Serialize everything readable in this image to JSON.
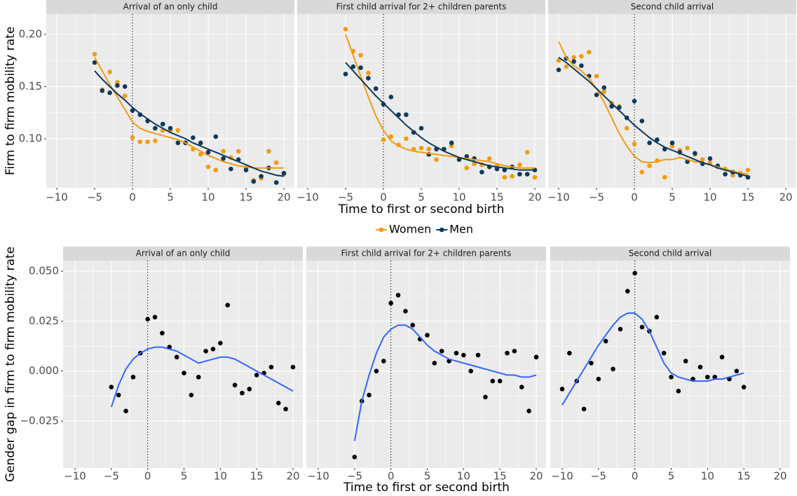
{
  "chart_data": [
    {
      "type": "scatter",
      "y_label": "Firm to firm mobility rate",
      "x_label": "Time to first or second birth",
      "ylim": [
        0.053,
        0.2195
      ],
      "yticks": [
        {
          "value": 0.1,
          "label": "0.10"
        },
        {
          "value": 0.15,
          "label": "0.15"
        },
        {
          "value": 0.2,
          "label": "0.20"
        }
      ],
      "xlim": [
        -11.39,
        21.39
      ],
      "xticks": [
        {
          "value": -10,
          "label": "−10"
        },
        {
          "value": -5,
          "label": "−5"
        },
        0,
        5,
        10,
        15,
        20
      ],
      "vline": 0,
      "grid": true,
      "legend": "bottom",
      "series": [
        {
          "name": "Women",
          "color": "#f39b12"
        },
        {
          "name": "Men",
          "color": "#0e3a5c"
        }
      ],
      "facets": [
        {
          "title": "Arrival of an only child",
          "x": [
            -5,
            -4,
            -3,
            -2,
            -1,
            0,
            1,
            2,
            3,
            4,
            5,
            6,
            7,
            8,
            9,
            10,
            11,
            12,
            13,
            14,
            15,
            16,
            17,
            18,
            19,
            20
          ],
          "series": [
            {
              "values": [
                0.181,
                0.147,
                0.164,
                0.154,
                0.141,
                0.101,
                0.097,
                0.097,
                0.098,
                0.108,
                0.108,
                0.108,
                0.096,
                0.09,
                0.085,
                0.073,
                0.07,
                0.088,
                0.082,
                0.088,
                0.072,
                0.06,
                0.062,
                0.088,
                0.077,
                0.066
              ],
              "trend": [
                0.178,
                0.165,
                0.152,
                0.14,
                0.128,
                0.116,
                0.11,
                0.107,
                0.105,
                0.103,
                0.101,
                0.099,
                0.096,
                0.092,
                0.088,
                0.084,
                0.081,
                0.078,
                0.076,
                0.074,
                0.073,
                0.072,
                0.072,
                0.072,
                0.072,
                0.072
              ]
            },
            {
              "values": [
                0.173,
                0.146,
                0.144,
                0.151,
                0.15,
                0.127,
                0.123,
                0.117,
                0.11,
                0.114,
                0.11,
                0.096,
                0.096,
                0.101,
                0.096,
                0.087,
                0.102,
                0.081,
                0.071,
                0.08,
                0.07,
                0.059,
                0.064,
                0.072,
                0.058,
                0.067
              ],
              "trend": [
                0.165,
                0.157,
                0.15,
                0.143,
                0.137,
                0.13,
                0.124,
                0.119,
                0.114,
                0.11,
                0.106,
                0.103,
                0.1,
                0.096,
                0.093,
                0.09,
                0.087,
                0.084,
                0.081,
                0.078,
                0.075,
                0.072,
                0.069,
                0.067,
                0.065,
                0.064
              ]
            }
          ]
        },
        {
          "title": "First child arrival for 2+ children parents",
          "x": [
            -5,
            -4,
            -3,
            -2,
            -1,
            0,
            1,
            2,
            3,
            4,
            5,
            6,
            7,
            8,
            9,
            10,
            11,
            12,
            13,
            14,
            15,
            16,
            17,
            18,
            19,
            20
          ],
          "series": [
            {
              "values": [
                0.205,
                0.184,
                0.18,
                0.163,
                0.148,
                0.099,
                0.102,
                0.094,
                0.1,
                0.09,
                0.091,
                0.09,
                0.08,
                0.09,
                0.093,
                0.08,
                0.072,
                0.076,
                0.075,
                0.081,
                0.074,
                0.063,
                0.064,
                0.075,
                0.087,
                0.063
              ],
              "trend": [
                0.2,
                0.18,
                0.16,
                0.14,
                0.122,
                0.108,
                0.098,
                0.093,
                0.09,
                0.088,
                0.087,
                0.086,
                0.085,
                0.084,
                0.083,
                0.082,
                0.081,
                0.08,
                0.079,
                0.078,
                0.076,
                0.074,
                0.073,
                0.072,
                0.072,
                0.072
              ]
            },
            {
              "values": [
                0.162,
                0.169,
                0.168,
                0.158,
                0.148,
                0.133,
                0.14,
                0.123,
                0.123,
                0.106,
                0.11,
                0.085,
                0.09,
                0.09,
                0.096,
                0.08,
                0.083,
                0.081,
                0.068,
                0.073,
                0.071,
                0.07,
                0.073,
                0.066,
                0.066,
                0.07
              ],
              "trend": [
                0.173,
                0.165,
                0.157,
                0.149,
                0.141,
                0.134,
                0.127,
                0.12,
                0.113,
                0.107,
                0.101,
                0.096,
                0.092,
                0.088,
                0.085,
                0.082,
                0.08,
                0.078,
                0.076,
                0.074,
                0.073,
                0.072,
                0.071,
                0.07,
                0.07,
                0.07
              ]
            }
          ]
        },
        {
          "title": "Second child arrival",
          "x": [
            -10,
            -9,
            -8,
            -7,
            -6,
            -5,
            -4,
            -3,
            -2,
            -1,
            0,
            1,
            2,
            3,
            4,
            5,
            6,
            7,
            8,
            9,
            10,
            11,
            12,
            13,
            14,
            15
          ],
          "series": [
            {
              "values": [
                0.175,
                0.169,
                0.178,
                0.179,
                0.183,
                0.16,
                0.145,
                0.134,
                0.131,
                0.11,
                0.095,
                0.068,
                0.074,
                0.079,
                0.063,
                0.093,
                0.089,
                0.091,
                0.085,
                0.08,
                0.077,
                0.073,
                0.071,
                0.065,
                0.067,
                0.07
              ],
              "trend": [
                0.193,
                0.178,
                0.17,
                0.165,
                0.158,
                0.148,
                0.135,
                0.12,
                0.105,
                0.093,
                0.083,
                0.078,
                0.077,
                0.078,
                0.08,
                0.08,
                0.082,
                0.08,
                0.078,
                0.077,
                0.075,
                0.073,
                0.071,
                0.069,
                0.067,
                0.066
              ]
            },
            {
              "values": [
                0.166,
                0.177,
                0.174,
                0.17,
                0.16,
                0.142,
                0.149,
                0.131,
                0.13,
                0.12,
                0.136,
                0.117,
                0.096,
                0.099,
                0.09,
                0.096,
                0.087,
                0.078,
                0.086,
                0.076,
                0.081,
                0.074,
                0.066,
                0.068,
                0.065,
                0.063
              ],
              "trend": [
                0.178,
                0.173,
                0.167,
                0.161,
                0.155,
                0.148,
                0.141,
                0.134,
                0.127,
                0.12,
                0.113,
                0.107,
                0.101,
                0.096,
                0.092,
                0.089,
                0.086,
                0.083,
                0.08,
                0.077,
                0.075,
                0.072,
                0.07,
                0.068,
                0.066,
                0.064
              ]
            }
          ]
        }
      ]
    },
    {
      "type": "scatter",
      "y_label": "Gender gap in firm to firm mobility rate",
      "x_label": "Time to first or second birth",
      "ylim": [
        -0.0485,
        0.0553
      ],
      "yticks": [
        {
          "value": -0.025,
          "label": "−0.025"
        },
        {
          "value": 0,
          "label": "0.000"
        },
        {
          "value": 0.025,
          "label": "0.025"
        },
        {
          "value": 0.05,
          "label": "0.050"
        }
      ],
      "xlim": [
        -11.64,
        21.35
      ],
      "xticks": [
        {
          "value": -10,
          "label": "−10"
        },
        {
          "value": -5,
          "label": "−5"
        },
        0,
        5,
        10,
        15,
        20
      ],
      "vline": 0,
      "grid": true,
      "series": [
        {
          "color": "#000000",
          "trend_color": "#3366ff"
        }
      ],
      "facets": [
        {
          "title": "Arrival of an only child",
          "x": [
            -5,
            -4,
            -3,
            -2,
            -1,
            0,
            1,
            2,
            3,
            4,
            5,
            6,
            7,
            8,
            9,
            10,
            11,
            12,
            13,
            14,
            15,
            16,
            17,
            18,
            19,
            20
          ],
          "series": [
            {
              "values": [
                -0.008,
                -0.012,
                -0.02,
                -0.003,
                0.009,
                0.026,
                0.027,
                0.019,
                0.012,
                0.007,
                -0.001,
                -0.012,
                -0.003,
                0.01,
                0.011,
                0.014,
                0.033,
                -0.007,
                -0.011,
                -0.009,
                -0.002,
                -0.001,
                0.002,
                -0.016,
                -0.019,
                0.002
              ],
              "trend": [
                -0.018,
                -0.007,
                0.001,
                0.006,
                0.009,
                0.011,
                0.012,
                0.012,
                0.011,
                0.01,
                0.008,
                0.006,
                0.004,
                0.005,
                0.006,
                0.007,
                0.007,
                0.006,
                0.004,
                0.002,
                0.0,
                -0.002,
                -0.004,
                -0.006,
                -0.008,
                -0.01
              ]
            }
          ]
        },
        {
          "title": "First child arrival for 2+ children parents",
          "x": [
            -5,
            -4,
            -3,
            -2,
            -1,
            0,
            1,
            2,
            3,
            4,
            5,
            6,
            7,
            8,
            9,
            10,
            11,
            12,
            13,
            14,
            15,
            16,
            17,
            18,
            19,
            20
          ],
          "series": [
            {
              "values": [
                -0.043,
                -0.015,
                -0.012,
                0.0,
                0.005,
                0.034,
                0.038,
                0.03,
                0.023,
                0.016,
                0.018,
                0.004,
                0.01,
                0.005,
                0.009,
                0.008,
                0.0,
                0.008,
                -0.013,
                -0.005,
                -0.005,
                0.009,
                0.01,
                -0.008,
                -0.02,
                0.007
              ],
              "trend": [
                -0.035,
                -0.015,
                -0.002,
                0.009,
                0.017,
                0.021,
                0.023,
                0.023,
                0.021,
                0.017,
                0.013,
                0.01,
                0.008,
                0.006,
                0.005,
                0.004,
                0.003,
                0.002,
                0.001,
                0.0,
                -0.001,
                -0.002,
                -0.002,
                -0.003,
                -0.003,
                -0.002
              ]
            }
          ]
        },
        {
          "title": "Second child arrival",
          "x": [
            -10,
            -9,
            -8,
            -7,
            -6,
            -5,
            -4,
            -3,
            -2,
            -1,
            0,
            1,
            2,
            3,
            4,
            5,
            6,
            7,
            8,
            9,
            10,
            11,
            12,
            13,
            14,
            15
          ],
          "series": [
            {
              "values": [
                -0.009,
                0.009,
                -0.005,
                -0.019,
                0.004,
                -0.004,
                0.015,
                0.001,
                0.021,
                0.04,
                0.049,
                0.022,
                0.02,
                0.027,
                0.009,
                -0.003,
                -0.01,
                0.005,
                -0.004,
                0.002,
                -0.003,
                -0.003,
                0.007,
                -0.004,
                0.0,
                -0.008
              ],
              "trend": [
                -0.017,
                -0.011,
                -0.005,
                0.001,
                0.007,
                0.013,
                0.018,
                0.023,
                0.027,
                0.029,
                0.029,
                0.026,
                0.02,
                0.012,
                0.004,
                -0.001,
                -0.003,
                -0.004,
                -0.005,
                -0.005,
                -0.005,
                -0.004,
                -0.004,
                -0.003,
                -0.002,
                -0.001
              ]
            }
          ]
        }
      ]
    }
  ]
}
